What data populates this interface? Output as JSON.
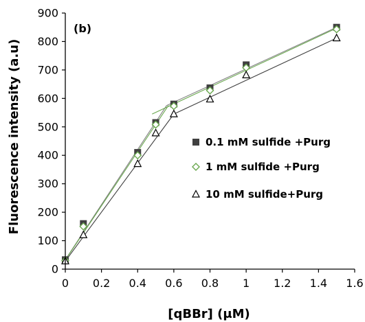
{
  "chart_data": {
    "type": "scatter",
    "panel_label": "(b)",
    "xlabel": "[qBBr] (μM)",
    "ylabel": "Fluorescence intensity (a.u)",
    "xlim": [
      0,
      1.6
    ],
    "ylim": [
      0,
      900
    ],
    "x_ticks": [
      "0",
      "0.2",
      "0.4",
      "0.6",
      "0.8",
      "1",
      "1.2",
      "1.4",
      "1.6"
    ],
    "y_ticks": [
      "0",
      "100",
      "200",
      "300",
      "400",
      "500",
      "600",
      "700",
      "800",
      "900"
    ],
    "x": [
      0,
      0.1,
      0.4,
      0.5,
      0.6,
      0.8,
      1.0,
      1.5
    ],
    "series": [
      {
        "name": "0.1 mM sulfide +Purg",
        "marker": "filled-square",
        "color": "#404040",
        "values": [
          33,
          160,
          410,
          515,
          580,
          637,
          718,
          850
        ]
      },
      {
        "name": "1 mM sulfide +Purg",
        "marker": "open-diamond",
        "color": "#6aa84f",
        "values": [
          30,
          150,
          400,
          508,
          573,
          628,
          708,
          843
        ]
      },
      {
        "name": "10 mM sulfide+Purg",
        "marker": "open-triangle",
        "color": "#000000",
        "values": [
          28,
          120,
          370,
          478,
          545,
          597,
          682,
          812
        ]
      }
    ],
    "fit_lines": [
      {
        "series": "0.1 mM sulfide +Purg",
        "color": "#808080",
        "segments": [
          [
            [
              0,
              33
            ],
            [
              0.56,
              575
            ]
          ],
          [
            [
              0.56,
              575
            ],
            [
              1.5,
              850
            ]
          ]
        ]
      },
      {
        "series": "1 mM sulfide +Purg",
        "color": "#6aa84f",
        "segments": [
          [
            [
              0,
              32
            ],
            [
              0.57,
              575
            ]
          ],
          [
            [
              0.48,
              545
            ],
            [
              1.5,
              847
            ]
          ]
        ]
      },
      {
        "series": "10 mM sulfide+Purg",
        "color": "#404040",
        "segments": [
          [
            [
              0,
              28
            ],
            [
              0.6,
              545
            ]
          ],
          [
            [
              0.6,
              545
            ],
            [
              1.5,
              812
            ]
          ]
        ]
      }
    ],
    "legend_position": "right-center",
    "grid": false
  }
}
